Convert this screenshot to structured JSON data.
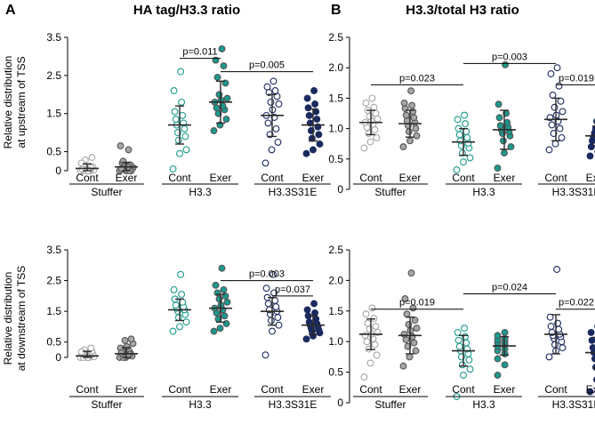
{
  "panel_labels": {
    "left": "A",
    "right": "B"
  },
  "titles": {
    "left": "HA tag/H3.3 ratio",
    "right": "H3.3/total H3 ratio"
  },
  "ylabels": {
    "top": [
      "Relative distribution",
      "at upstream of TSS"
    ],
    "bottom": [
      "Relative distribution",
      "at downstream of TSS"
    ]
  },
  "conditions": [
    "Cont",
    "Exer"
  ],
  "group_labels": [
    "Stuffer",
    "H3.3",
    "H3.3S31E"
  ],
  "colors": {
    "stuffer": "#a6a6a6",
    "h33": "#1a9a8e",
    "s31e": "#1b2a5e",
    "stroke": "#2a2a2a"
  },
  "chart_data": [
    {
      "id": "A-top",
      "type": "scatter",
      "ylim": [
        0,
        3.5
      ],
      "yticks": [
        "0",
        "0.5",
        "1.5",
        "2.5",
        "3.5"
      ],
      "ytick_values": [
        0,
        0.5,
        1.5,
        2.5,
        3.5
      ],
      "series": [
        {
          "name": "Stuffer Cont",
          "mean": 0.06,
          "sd": 0.12,
          "points": [
            0.0,
            0.0,
            0.02,
            0.05,
            0.1,
            0.28,
            0.35,
            0.0,
            0.08,
            0.15,
            0.0,
            0.04,
            0.0,
            0.2,
            0.0
          ]
        },
        {
          "name": "Stuffer Exer",
          "mean": 0.1,
          "sd": 0.12,
          "points": [
            0.0,
            0.0,
            0.05,
            0.1,
            0.15,
            0.2,
            0.55,
            0.65,
            0.0,
            0.08,
            0.12,
            0.0,
            0.25,
            0.0,
            0.05,
            0.1
          ]
        },
        {
          "name": "H3.3 Cont",
          "mean": 1.2,
          "sd": 0.5,
          "points": [
            0.05,
            0.45,
            0.55,
            0.8,
            0.9,
            1.0,
            1.1,
            1.2,
            1.25,
            1.35,
            1.45,
            1.55,
            1.8,
            2.1,
            2.6
          ]
        },
        {
          "name": "H3.3 Exer",
          "mean": 1.8,
          "sd": 0.55,
          "points": [
            1.05,
            1.2,
            1.35,
            1.5,
            1.6,
            1.65,
            1.7,
            1.8,
            1.85,
            1.9,
            2.0,
            2.3,
            2.45,
            2.75,
            2.9,
            3.2
          ]
        },
        {
          "name": "H3.3S31E Cont",
          "mean": 1.45,
          "sd": 0.55,
          "points": [
            0.2,
            0.55,
            0.75,
            0.95,
            1.1,
            1.25,
            1.4,
            1.45,
            1.6,
            1.75,
            1.8,
            1.95,
            2.05,
            2.1,
            2.2,
            2.35
          ]
        },
        {
          "name": "H3.3S31E Exer",
          "mean": 1.2,
          "sd": 0.42,
          "points": [
            0.45,
            0.55,
            0.7,
            0.85,
            0.95,
            1.05,
            1.15,
            1.25,
            1.35,
            1.45,
            1.55,
            1.65,
            1.75,
            1.9,
            2.1
          ]
        }
      ],
      "annotations": [
        {
          "text": "p=0.011",
          "from": 2,
          "to": 3,
          "y": 2.95
        },
        {
          "text": "p=0.005",
          "from": 3,
          "to": 5,
          "y": 2.6
        }
      ]
    },
    {
      "id": "B-top",
      "type": "scatter",
      "ylim": [
        0,
        2.5
      ],
      "yticks": [
        "0",
        "0.5",
        "1.0",
        "1.5",
        "2.0",
        "2.5"
      ],
      "ytick_values": [
        0,
        0.5,
        1.0,
        1.5,
        2.0,
        2.5
      ],
      "series": [
        {
          "name": "Stuffer Cont",
          "mean": 1.1,
          "sd": 0.2,
          "points": [
            0.68,
            0.78,
            0.85,
            0.92,
            0.98,
            1.02,
            1.07,
            1.1,
            1.13,
            1.16,
            1.2,
            1.25,
            1.3,
            1.35,
            1.42,
            1.5
          ]
        },
        {
          "name": "Stuffer Exer",
          "mean": 1.08,
          "sd": 0.22,
          "points": [
            0.7,
            0.8,
            0.88,
            0.95,
            1.0,
            1.05,
            1.1,
            1.13,
            1.18,
            1.22,
            1.28,
            1.33,
            1.38,
            1.42,
            1.62
          ]
        },
        {
          "name": "H3.3 Cont",
          "mean": 0.78,
          "sd": 0.22,
          "points": [
            0.32,
            0.45,
            0.52,
            0.6,
            0.68,
            0.72,
            0.76,
            0.8,
            0.85,
            0.9,
            0.95,
            1.0,
            1.08,
            1.15,
            1.22
          ]
        },
        {
          "name": "H3.3 Exer",
          "mean": 0.98,
          "sd": 0.32,
          "points": [
            0.35,
            0.6,
            0.7,
            0.8,
            0.88,
            0.92,
            0.95,
            0.98,
            1.02,
            1.05,
            1.1,
            1.18,
            1.25,
            1.4,
            2.05
          ]
        },
        {
          "name": "H3.3S31E Cont",
          "mean": 1.15,
          "sd": 0.35,
          "points": [
            0.65,
            0.75,
            0.85,
            0.92,
            1.0,
            1.06,
            1.12,
            1.18,
            1.22,
            1.28,
            1.35,
            1.45,
            1.55,
            1.7,
            1.9,
            2.0
          ]
        },
        {
          "name": "H3.3S31E Exer",
          "mean": 0.88,
          "sd": 0.16,
          "points": [
            0.55,
            0.62,
            0.7,
            0.75,
            0.8,
            0.83,
            0.86,
            0.9,
            0.93,
            0.96,
            1.0,
            1.05,
            1.12
          ]
        }
      ],
      "annotations": [
        {
          "text": "p=0.023",
          "from": 0,
          "to": 2,
          "y": 1.72
        },
        {
          "text": "p=0.003",
          "from": 2,
          "to": 4,
          "y": 2.07
        },
        {
          "text": "p=0.019",
          "from": 4,
          "to": 5,
          "y": 1.72
        }
      ]
    },
    {
      "id": "A-bottom",
      "type": "scatter",
      "ylim": [
        0,
        3.5
      ],
      "yticks": [
        "0",
        "0.5",
        "1.5",
        "2.5",
        "3.5"
      ],
      "ytick_values": [
        0,
        0.5,
        1.5,
        2.5,
        3.5
      ],
      "series": [
        {
          "name": "Stuffer Cont",
          "mean": 0.05,
          "sd": 0.15,
          "points": [
            0.0,
            0.0,
            0.02,
            0.05,
            0.1,
            0.15,
            0.2,
            0.25,
            0.3,
            0.0,
            0.05,
            0.12,
            0.0,
            0.18,
            0.0
          ]
        },
        {
          "name": "Stuffer Exer",
          "mean": 0.12,
          "sd": 0.2,
          "points": [
            0.0,
            0.0,
            0.05,
            0.1,
            0.15,
            0.2,
            0.25,
            0.3,
            0.35,
            0.45,
            0.55,
            0.6,
            0.0,
            0.1,
            0.15,
            0.05
          ]
        },
        {
          "name": "H3.3 Cont",
          "mean": 1.55,
          "sd": 0.35,
          "points": [
            0.85,
            1.0,
            1.15,
            1.3,
            1.4,
            1.5,
            1.55,
            1.6,
            1.65,
            1.7,
            1.8,
            1.9,
            2.05,
            2.2,
            2.7
          ]
        },
        {
          "name": "H3.3 Exer",
          "mean": 1.6,
          "sd": 0.45,
          "points": [
            0.85,
            0.95,
            1.1,
            1.25,
            1.35,
            1.45,
            1.55,
            1.6,
            1.7,
            1.8,
            1.9,
            2.0,
            2.1,
            2.2,
            2.35,
            2.9
          ]
        },
        {
          "name": "H3.3S31E Cont",
          "mean": 1.5,
          "sd": 0.45,
          "points": [
            0.08,
            0.85,
            1.05,
            1.2,
            1.3,
            1.4,
            1.5,
            1.55,
            1.65,
            1.75,
            1.85,
            1.95,
            2.1,
            2.25,
            2.7
          ]
        },
        {
          "name": "H3.3S31E Exer",
          "mean": 1.05,
          "sd": 0.3,
          "points": [
            0.6,
            0.7,
            0.8,
            0.85,
            0.9,
            0.95,
            1.0,
            1.05,
            1.1,
            1.15,
            1.25,
            1.35,
            1.45,
            1.55,
            1.75
          ]
        }
      ],
      "annotations": [
        {
          "text": "p=0.003",
          "from": 3,
          "to": 5,
          "y": 2.5
        },
        {
          "text": "p=0.037",
          "from": 4,
          "to": 5,
          "y": 2.0
        }
      ]
    },
    {
      "id": "B-bottom",
      "type": "scatter",
      "ylim": [
        0,
        2.5
      ],
      "yticks": [
        "0",
        "0.5",
        "1.0",
        "1.5",
        "2.0",
        "2.5"
      ],
      "ytick_values": [
        0,
        0.5,
        1.0,
        1.5,
        2.0,
        2.5
      ],
      "series": [
        {
          "name": "Stuffer Cont",
          "mean": 1.12,
          "sd": 0.25,
          "points": [
            0.42,
            0.65,
            0.78,
            0.88,
            0.95,
            1.0,
            1.05,
            1.1,
            1.12,
            1.15,
            1.2,
            1.25,
            1.3,
            1.38,
            1.45,
            1.55
          ]
        },
        {
          "name": "Stuffer Exer",
          "mean": 1.1,
          "sd": 0.3,
          "points": [
            0.6,
            0.75,
            0.85,
            0.92,
            0.98,
            1.03,
            1.08,
            1.12,
            1.18,
            1.22,
            1.28,
            1.35,
            1.45,
            1.55,
            1.7,
            2.12
          ]
        },
        {
          "name": "H3.3 Cont",
          "mean": 0.85,
          "sd": 0.25,
          "points": [
            0.1,
            0.45,
            0.55,
            0.62,
            0.7,
            0.75,
            0.8,
            0.85,
            0.88,
            0.92,
            0.98,
            1.02,
            1.08,
            1.15,
            1.22
          ]
        },
        {
          "name": "H3.3 Exer",
          "mean": 0.93,
          "sd": 0.15,
          "points": [
            0.45,
            0.62,
            0.72,
            0.8,
            0.85,
            0.88,
            0.92,
            0.95,
            0.98,
            1.0,
            1.03,
            1.05,
            1.1,
            1.15
          ]
        },
        {
          "name": "H3.3S31E Cont",
          "mean": 1.12,
          "sd": 0.32,
          "points": [
            0.75,
            0.85,
            0.9,
            0.95,
            1.0,
            1.05,
            1.08,
            1.1,
            1.12,
            1.15,
            1.2,
            1.25,
            1.3,
            1.4,
            2.18
          ]
        },
        {
          "name": "H3.3S31E Exer",
          "mean": 0.82,
          "sd": 0.25,
          "points": [
            0.18,
            0.38,
            0.5,
            0.58,
            0.65,
            0.72,
            0.78,
            0.82,
            0.86,
            0.9,
            0.95,
            1.02,
            1.08,
            1.15,
            1.25
          ]
        }
      ],
      "annotations": [
        {
          "text": "p=0.019",
          "from": 0,
          "to": 2,
          "y": 1.53
        },
        {
          "text": "p=0.024",
          "from": 2,
          "to": 4,
          "y": 1.78
        },
        {
          "text": "p=0.022",
          "from": 4,
          "to": 5,
          "y": 1.53
        }
      ]
    }
  ]
}
